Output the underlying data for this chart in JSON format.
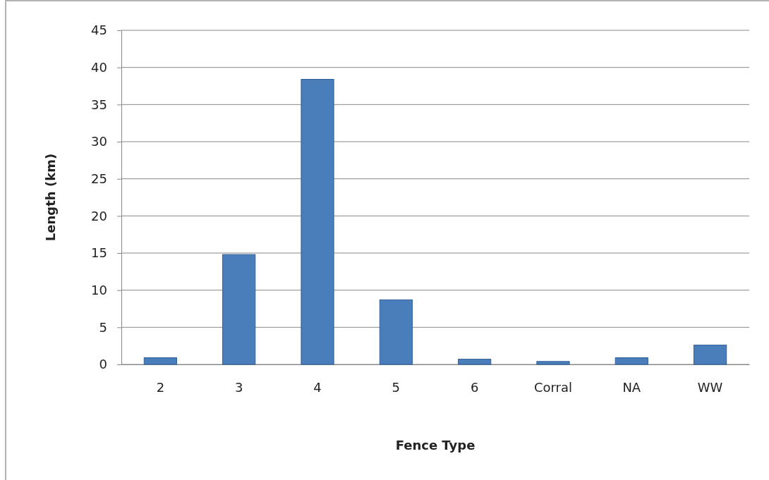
{
  "chart_data": {
    "type": "bar",
    "xlabel": "Fence Type",
    "ylabel": "Length (km)",
    "categories": [
      "2",
      "3",
      "4",
      "5",
      "6",
      "Corral",
      "NA",
      "WW"
    ],
    "values": [
      0.9,
      14.8,
      38.4,
      8.7,
      0.7,
      0.4,
      0.9,
      2.6
    ],
    "color": "#4a7ebb",
    "ylim": [
      0,
      45
    ],
    "yticks": [
      0,
      5,
      10,
      15,
      20,
      25,
      30,
      35,
      40,
      45
    ],
    "grid": "y"
  }
}
